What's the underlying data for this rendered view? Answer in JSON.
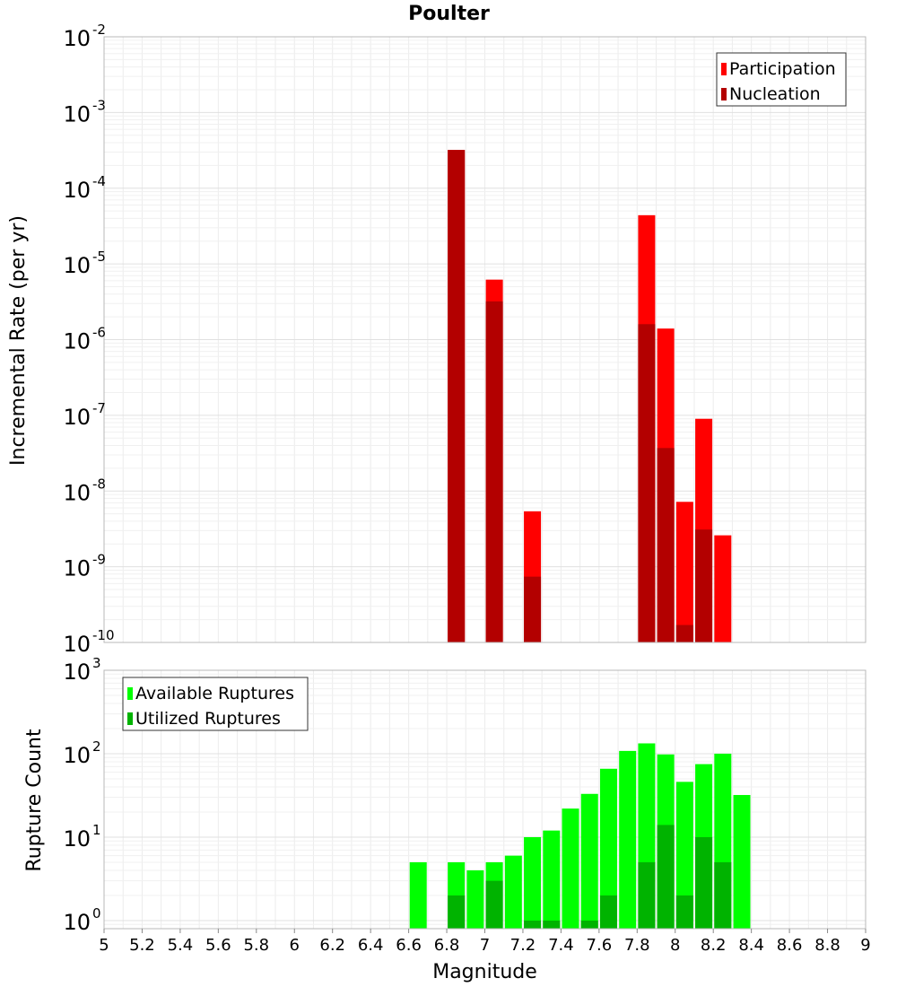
{
  "chart_data": [
    {
      "type": "bar",
      "title": "Poulter",
      "ylabel": "Incremental Rate (per yr)",
      "xlabel": "",
      "y_scale": "log",
      "ylim": [
        1e-10,
        0.01
      ],
      "xlim": [
        5,
        9
      ],
      "y_tick_exponents": [
        "-10",
        "-9",
        "-8",
        "-7",
        "-6",
        "-5",
        "-4",
        "-3",
        "-2"
      ],
      "y_tick_base": "10",
      "grid": true,
      "legend_position": "top-right",
      "series": [
        {
          "name": "Participation",
          "color": "#ff0000",
          "points": [
            {
              "x": 6.85,
              "y": 0.00032
            },
            {
              "x": 7.05,
              "y": 6.2e-06
            },
            {
              "x": 7.25,
              "y": 5.4e-09
            },
            {
              "x": 7.85,
              "y": 4.4e-05
            },
            {
              "x": 7.95,
              "y": 1.4e-06
            },
            {
              "x": 8.05,
              "y": 7.2e-09
            },
            {
              "x": 8.15,
              "y": 9e-08
            },
            {
              "x": 8.25,
              "y": 2.6e-09
            }
          ]
        },
        {
          "name": "Nucleation",
          "color": "#b30000",
          "points": [
            {
              "x": 6.85,
              "y": 0.00032
            },
            {
              "x": 7.05,
              "y": 3.2e-06
            },
            {
              "x": 7.25,
              "y": 7.4e-10
            },
            {
              "x": 7.85,
              "y": 1.6e-06
            },
            {
              "x": 7.95,
              "y": 3.7e-08
            },
            {
              "x": 8.05,
              "y": 1.7e-10
            },
            {
              "x": 8.15,
              "y": 3.1e-09
            }
          ]
        }
      ]
    },
    {
      "type": "bar",
      "title": "",
      "ylabel": "Rupture Count",
      "xlabel": "Magnitude",
      "y_scale": "log",
      "ylim": [
        0.8,
        1000
      ],
      "xlim": [
        5,
        9
      ],
      "y_tick_exponents": [
        "0",
        "1",
        "2",
        "3"
      ],
      "y_tick_base": "10",
      "x_ticks": [
        "5",
        "5.2",
        "5.4",
        "5.6",
        "5.8",
        "6",
        "6.2",
        "6.4",
        "6.6",
        "6.8",
        "7",
        "7.2",
        "7.4",
        "7.6",
        "7.8",
        "8",
        "8.2",
        "8.4",
        "8.6",
        "8.8",
        "9"
      ],
      "grid": true,
      "legend_position": "top-left",
      "series": [
        {
          "name": "Available Ruptures",
          "color": "#00ff00",
          "points": [
            {
              "x": 6.65,
              "y": 5
            },
            {
              "x": 6.85,
              "y": 5
            },
            {
              "x": 6.95,
              "y": 4
            },
            {
              "x": 7.05,
              "y": 5
            },
            {
              "x": 7.15,
              "y": 6
            },
            {
              "x": 7.25,
              "y": 10
            },
            {
              "x": 7.35,
              "y": 12
            },
            {
              "x": 7.45,
              "y": 22
            },
            {
              "x": 7.55,
              "y": 33
            },
            {
              "x": 7.65,
              "y": 66
            },
            {
              "x": 7.75,
              "y": 108
            },
            {
              "x": 7.85,
              "y": 133
            },
            {
              "x": 7.95,
              "y": 98
            },
            {
              "x": 8.05,
              "y": 46
            },
            {
              "x": 8.15,
              "y": 75
            },
            {
              "x": 8.25,
              "y": 100
            },
            {
              "x": 8.35,
              "y": 32
            }
          ]
        },
        {
          "name": "Utilized Ruptures",
          "color": "#00b300",
          "points": [
            {
              "x": 6.85,
              "y": 2
            },
            {
              "x": 7.05,
              "y": 3
            },
            {
              "x": 7.25,
              "y": 1
            },
            {
              "x": 7.35,
              "y": 1
            },
            {
              "x": 7.55,
              "y": 1
            },
            {
              "x": 7.65,
              "y": 2
            },
            {
              "x": 7.85,
              "y": 5
            },
            {
              "x": 7.95,
              "y": 14
            },
            {
              "x": 8.05,
              "y": 2
            },
            {
              "x": 8.15,
              "y": 10
            },
            {
              "x": 8.25,
              "y": 5
            }
          ]
        }
      ]
    }
  ]
}
